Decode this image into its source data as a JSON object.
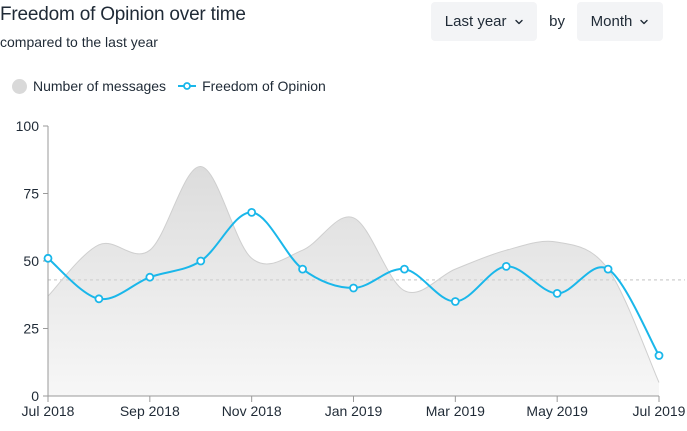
{
  "header": {
    "title": "Freedom of Opinion over time",
    "subtitle": "compared to the last year"
  },
  "controls": {
    "period_label": "Last year",
    "by_label": "by",
    "granularity_label": "Month"
  },
  "legend": {
    "messages_label": "Number of messages",
    "opinion_label": "Freedom of Opinion"
  },
  "colors": {
    "line": "#1ab7ea",
    "area_fill": "#e6e6e6",
    "area_stroke": "#cfcfcf",
    "average": "#d6d6d6",
    "axis": "#9a9a9a"
  },
  "chart_data": {
    "type": "line",
    "x": [
      "Jul 2018",
      "Aug 2018",
      "Sep 2018",
      "Oct 2018",
      "Nov 2018",
      "Dec 2018",
      "Jan 2019",
      "Feb 2019",
      "Mar 2019",
      "Apr 2019",
      "May 2019",
      "Jun 2019",
      "Jul 2019"
    ],
    "xticks": [
      "Jul 2018",
      "Sep 2018",
      "Nov 2018",
      "Jan 2019",
      "Mar 2019",
      "May 2019",
      "Jul 2019"
    ],
    "yticks": [
      0,
      25,
      50,
      75,
      100
    ],
    "ylim": [
      0,
      100
    ],
    "average": 43,
    "series": [
      {
        "name": "Number of messages",
        "kind": "area",
        "values": [
          37,
          56,
          54,
          85,
          51,
          54,
          66,
          39,
          47,
          54,
          57,
          47,
          5
        ]
      },
      {
        "name": "Freedom of Opinion",
        "kind": "line",
        "values": [
          51,
          36,
          44,
          50,
          68,
          47,
          40,
          47,
          35,
          48,
          38,
          47,
          15
        ]
      }
    ],
    "grid": false,
    "legend_position": "top-left"
  }
}
